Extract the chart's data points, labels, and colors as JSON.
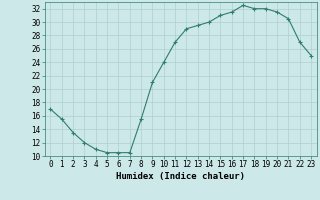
{
  "x": [
    0,
    1,
    2,
    3,
    4,
    5,
    6,
    7,
    8,
    9,
    10,
    11,
    12,
    13,
    14,
    15,
    16,
    17,
    18,
    19,
    20,
    21,
    22,
    23
  ],
  "y": [
    17,
    15.5,
    13.5,
    12,
    11,
    10.5,
    10.5,
    10.5,
    15.5,
    21,
    24,
    27,
    29,
    29.5,
    30,
    31,
    31.5,
    32.5,
    32,
    32,
    31.5,
    30.5,
    27,
    25
  ],
  "line_color": "#2e7d6e",
  "marker": "+",
  "bg_color": "#cde8e8",
  "grid_color": "#aed0d0",
  "xlabel": "Humidex (Indice chaleur)",
  "xlim": [
    -0.5,
    23.5
  ],
  "ylim": [
    10,
    33
  ],
  "yticks": [
    10,
    12,
    14,
    16,
    18,
    20,
    22,
    24,
    26,
    28,
    30,
    32
  ],
  "xticks": [
    0,
    1,
    2,
    3,
    4,
    5,
    6,
    7,
    8,
    9,
    10,
    11,
    12,
    13,
    14,
    15,
    16,
    17,
    18,
    19,
    20,
    21,
    22,
    23
  ],
  "tick_fontsize": 5.5,
  "label_fontsize": 6.5
}
